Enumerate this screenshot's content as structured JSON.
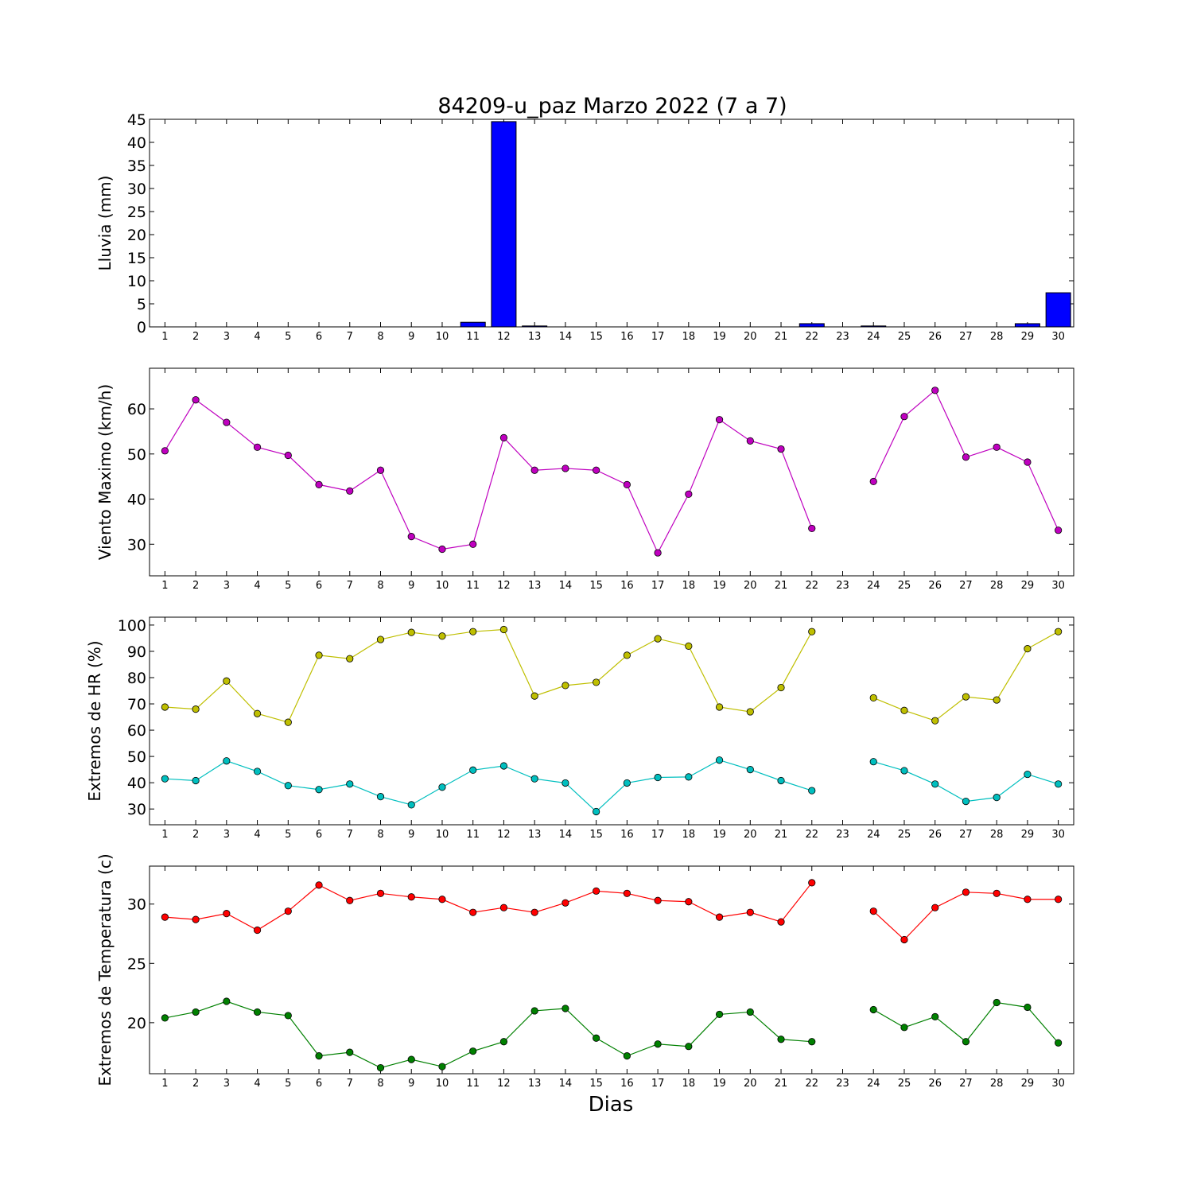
{
  "title": "84209-u_paz Marzo 2022  (7 a 7)",
  "xlabel": "Dias",
  "chart_data": [
    {
      "type": "bar",
      "ylabel": "Lluvia (mm)",
      "xlim": [
        0.5,
        30.5
      ],
      "ylim": [
        0,
        45
      ],
      "yticks": [
        0,
        5,
        10,
        15,
        20,
        25,
        30,
        35,
        40,
        45
      ],
      "categories": [
        1,
        2,
        3,
        4,
        5,
        6,
        7,
        8,
        9,
        10,
        11,
        12,
        13,
        14,
        15,
        16,
        17,
        18,
        19,
        20,
        21,
        22,
        23,
        24,
        25,
        26,
        27,
        28,
        29,
        30
      ],
      "series": [
        {
          "color": "#0000ff",
          "values": [
            0,
            0,
            0,
            0,
            0,
            0,
            0,
            0,
            0,
            0,
            1.0,
            44.5,
            0.2,
            0,
            0,
            0,
            0,
            0,
            0,
            0,
            0,
            0.7,
            null,
            0.2,
            0,
            0,
            0,
            0,
            0.7,
            7.4
          ]
        }
      ]
    },
    {
      "type": "line",
      "ylabel": "Viento Maximo (km/h)",
      "xlim": [
        0.5,
        30.5
      ],
      "ylim": [
        23,
        69
      ],
      "yticks": [
        30,
        40,
        50,
        60
      ],
      "x": [
        1,
        2,
        3,
        4,
        5,
        6,
        7,
        8,
        9,
        10,
        11,
        12,
        13,
        14,
        15,
        16,
        17,
        18,
        19,
        20,
        21,
        22,
        23,
        24,
        25,
        26,
        27,
        28,
        29,
        30
      ],
      "series": [
        {
          "color": "#bf00bf",
          "values": [
            50.7,
            62,
            57,
            51.5,
            49.7,
            43.2,
            41.8,
            46.4,
            31.7,
            28.9,
            30,
            53.6,
            46.4,
            46.8,
            46.4,
            43.2,
            28.1,
            41.1,
            57.6,
            52.9,
            51.1,
            33.5,
            null,
            43.9,
            58.3,
            64.1,
            49.3,
            51.5,
            48.2,
            33.1
          ]
        }
      ]
    },
    {
      "type": "line",
      "ylabel": "Extremos de HR (%)",
      "xlim": [
        0.5,
        30.5
      ],
      "ylim": [
        24,
        103
      ],
      "yticks": [
        30,
        40,
        50,
        60,
        70,
        80,
        90,
        100
      ],
      "x": [
        1,
        2,
        3,
        4,
        5,
        6,
        7,
        8,
        9,
        10,
        11,
        12,
        13,
        14,
        15,
        16,
        17,
        18,
        19,
        20,
        21,
        22,
        23,
        24,
        25,
        26,
        27,
        28,
        29,
        30
      ],
      "series": [
        {
          "color": "#bfbf00",
          "values": [
            68.8,
            68,
            78.7,
            66.3,
            63,
            88.5,
            87.2,
            94.5,
            97.2,
            95.8,
            97.5,
            98.3,
            73,
            77,
            78.2,
            88.5,
            94.8,
            92,
            68.8,
            67,
            76.2,
            97.5,
            null,
            72.3,
            67.5,
            63.6,
            72.7,
            71.5,
            91,
            97.5
          ]
        },
        {
          "color": "#00bfbf",
          "values": [
            41.5,
            40.8,
            48.3,
            44.3,
            38.9,
            37.4,
            39.5,
            34.7,
            31.6,
            38.3,
            44.8,
            46.4,
            41.5,
            39.9,
            29,
            39.9,
            42,
            42.2,
            48.6,
            45,
            40.8,
            37,
            null,
            48,
            44.6,
            39.5,
            32.9,
            34.4,
            43.2,
            39.5
          ]
        }
      ]
    },
    {
      "type": "line",
      "ylabel": "Extremos de Temperatura (c)",
      "xlim": [
        0.5,
        30.5
      ],
      "ylim": [
        15.7,
        33.2
      ],
      "yticks": [
        20,
        25,
        30
      ],
      "x": [
        1,
        2,
        3,
        4,
        5,
        6,
        7,
        8,
        9,
        10,
        11,
        12,
        13,
        14,
        15,
        16,
        17,
        18,
        19,
        20,
        21,
        22,
        23,
        24,
        25,
        26,
        27,
        28,
        29,
        30
      ],
      "series": [
        {
          "color": "#ff0000",
          "values": [
            28.9,
            28.7,
            29.2,
            27.8,
            29.4,
            31.6,
            30.3,
            30.9,
            30.6,
            30.4,
            29.3,
            29.7,
            29.3,
            30.1,
            31.1,
            30.9,
            30.3,
            30.2,
            28.9,
            29.3,
            28.5,
            31.8,
            null,
            29.4,
            27,
            29.7,
            31,
            30.9,
            30.4,
            30.4
          ]
        },
        {
          "color": "#008000",
          "values": [
            20.4,
            20.9,
            21.8,
            20.9,
            20.6,
            17.2,
            17.5,
            16.2,
            16.9,
            16.3,
            17.6,
            18.4,
            21,
            21.2,
            18.7,
            17.2,
            18.2,
            18,
            20.7,
            20.9,
            18.6,
            18.4,
            null,
            21.1,
            19.6,
            20.5,
            18.4,
            21.7,
            21.3,
            18.3
          ]
        }
      ]
    }
  ]
}
